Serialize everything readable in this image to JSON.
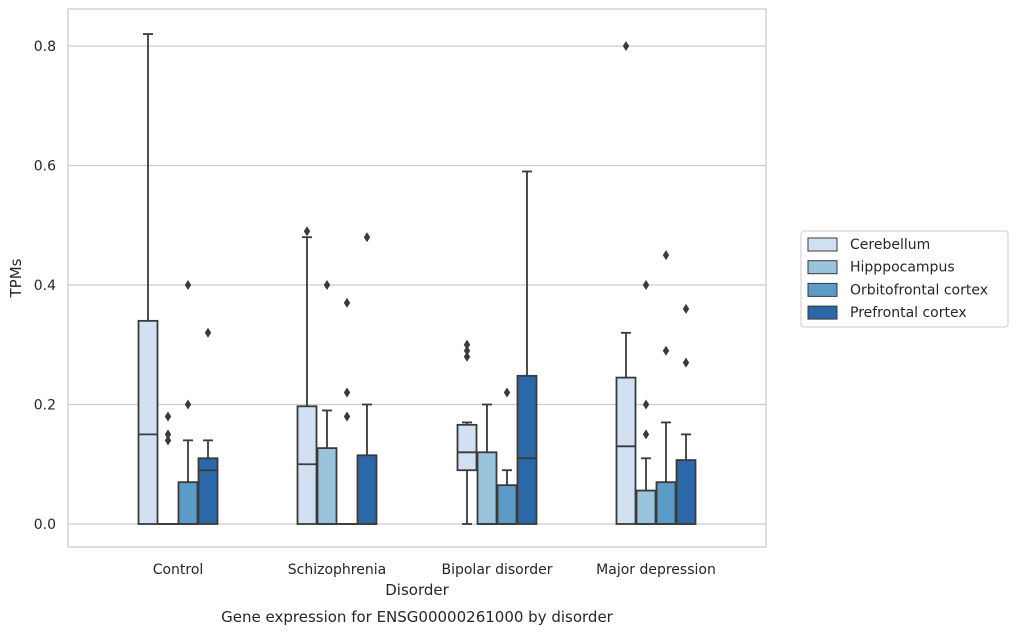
{
  "chart_data": {
    "type": "box",
    "title": "Gene expression for ENSG00000261000 by disorder",
    "xlabel": "Disorder",
    "ylabel": "TPMs",
    "ylim": [
      -0.04,
      0.865
    ],
    "yticks": [
      "0.0",
      "0.2",
      "0.4",
      "0.6",
      "0.8"
    ],
    "grid": "horizontal",
    "legend_position": "right",
    "categories": [
      "Control",
      "Schizophrenia",
      "Bipolar disorder",
      "Major depression"
    ],
    "series": [
      {
        "name": "Cerebellum",
        "color": "#d1e1f1",
        "boxes": [
          {
            "q1": 0.0,
            "median": 0.15,
            "q3": 0.34,
            "whisker_low": 0.0,
            "whisker_high": 0.82,
            "outliers": []
          },
          {
            "q1": 0.0,
            "median": 0.1,
            "q3": 0.197,
            "whisker_low": 0.0,
            "whisker_high": 0.48,
            "outliers": [
              0.49
            ]
          },
          {
            "q1": 0.09,
            "median": 0.12,
            "q3": 0.166,
            "whisker_low": 0.0,
            "whisker_high": 0.17,
            "outliers": [
              0.28,
              0.29,
              0.3
            ]
          },
          {
            "q1": 0.0,
            "median": 0.13,
            "q3": 0.245,
            "whisker_low": 0.0,
            "whisker_high": 0.32,
            "outliers": [
              0.8
            ]
          }
        ]
      },
      {
        "name": "Hipppocampus",
        "color": "#9ac3dc",
        "boxes": [
          {
            "q1": 0.0,
            "median": 0.0,
            "q3": 0.0,
            "whisker_low": 0.0,
            "whisker_high": 0.0,
            "outliers": [
              0.14,
              0.15,
              0.18
            ]
          },
          {
            "q1": 0.0,
            "median": 0.0,
            "q3": 0.127,
            "whisker_low": 0.0,
            "whisker_high": 0.19,
            "outliers": [
              0.4
            ]
          },
          {
            "q1": 0.0,
            "median": 0.0,
            "q3": 0.12,
            "whisker_low": 0.0,
            "whisker_high": 0.2,
            "outliers": []
          },
          {
            "q1": 0.0,
            "median": 0.0,
            "q3": 0.056,
            "whisker_low": 0.0,
            "whisker_high": 0.11,
            "outliers": [
              0.15,
              0.2,
              0.4
            ]
          }
        ]
      },
      {
        "name": "Orbitofrontal cortex",
        "color": "#5a9bc8",
        "boxes": [
          {
            "q1": 0.0,
            "median": 0.0,
            "q3": 0.07,
            "whisker_low": 0.0,
            "whisker_high": 0.14,
            "outliers": [
              0.2,
              0.4
            ]
          },
          {
            "q1": 0.0,
            "median": 0.0,
            "q3": 0.0,
            "whisker_low": 0.0,
            "whisker_high": 0.0,
            "outliers": [
              0.18,
              0.22,
              0.37
            ]
          },
          {
            "q1": 0.0,
            "median": 0.0,
            "q3": 0.065,
            "whisker_low": 0.0,
            "whisker_high": 0.09,
            "outliers": [
              0.22
            ]
          },
          {
            "q1": 0.0,
            "median": 0.0,
            "q3": 0.07,
            "whisker_low": 0.0,
            "whisker_high": 0.17,
            "outliers": [
              0.29,
              0.45
            ]
          }
        ]
      },
      {
        "name": "Prefrontal cortex",
        "color": "#2a68aa",
        "boxes": [
          {
            "q1": 0.0,
            "median": 0.09,
            "q3": 0.11,
            "whisker_low": 0.0,
            "whisker_high": 0.14,
            "outliers": [
              0.32
            ]
          },
          {
            "q1": 0.0,
            "median": 0.0,
            "q3": 0.115,
            "whisker_low": 0.0,
            "whisker_high": 0.2,
            "outliers": [
              0.48
            ]
          },
          {
            "q1": 0.0,
            "median": 0.11,
            "q3": 0.248,
            "whisker_low": 0.0,
            "whisker_high": 0.59,
            "outliers": []
          },
          {
            "q1": 0.0,
            "median": 0.0,
            "q3": 0.107,
            "whisker_low": 0.0,
            "whisker_high": 0.15,
            "outliers": [
              0.27,
              0.36
            ]
          }
        ]
      }
    ],
    "colors": {
      "edge": "#3a3a3a",
      "grid": "#cccccc",
      "frame": "#cccccc",
      "background": "#ffffff"
    }
  }
}
